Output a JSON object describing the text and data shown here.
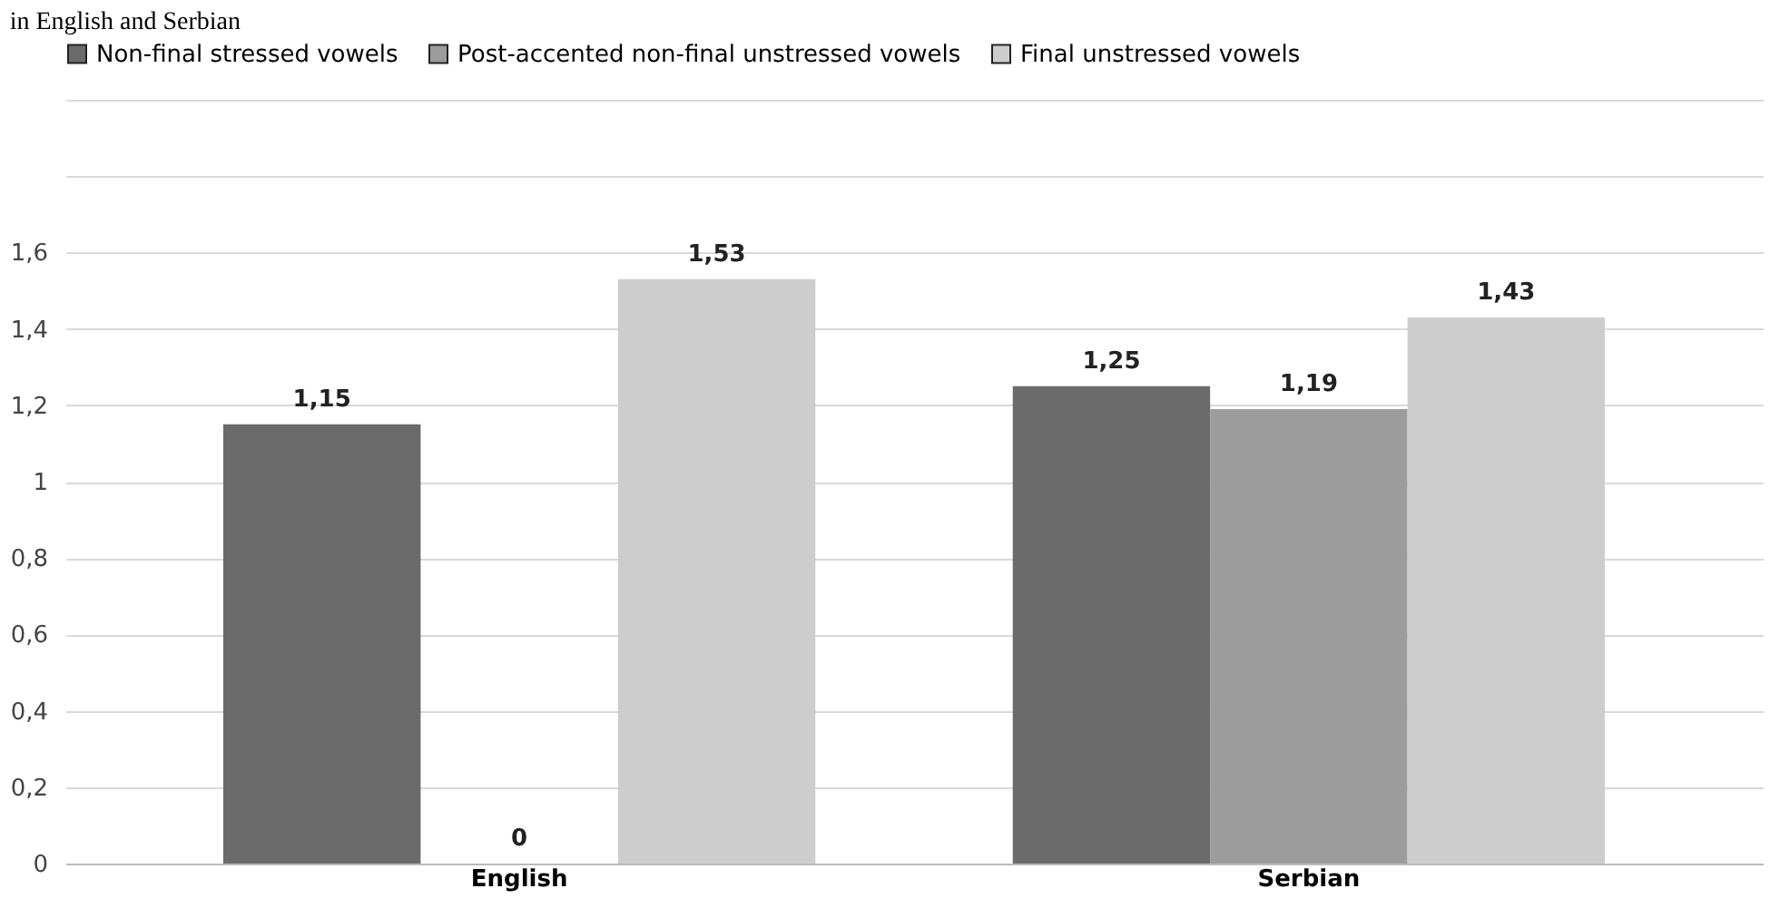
{
  "chart_data": {
    "type": "bar",
    "title": "in English and Serbian",
    "categories": [
      "English",
      "Serbian"
    ],
    "series": [
      {
        "name": "Non-final stressed vowels",
        "color": "#6b6b6b",
        "values": [
          1.15,
          1.25
        ],
        "value_labels": [
          "1,15",
          "1,25"
        ]
      },
      {
        "name": "Post-accented non-final unstressed vowels",
        "color": "#9c9c9c",
        "values": [
          0,
          1.19
        ],
        "value_labels": [
          "0",
          "1,19"
        ]
      },
      {
        "name": "Final unstressed vowels",
        "color": "#cdcdcd",
        "values": [
          1.53,
          1.43
        ],
        "value_labels": [
          "1,53",
          "1,43"
        ]
      }
    ],
    "ylim": [
      0,
      2
    ],
    "yticks": [
      "0",
      {
        "value": 0.2,
        "label": "0,2"
      },
      {
        "value": 0.4,
        "label": "0,4"
      },
      {
        "value": 0.6,
        "label": "0,6"
      },
      {
        "value": 0.8,
        "label": "0,8"
      },
      "1",
      {
        "value": 1.2,
        "label": "1,2"
      },
      {
        "value": 1.4,
        "label": "1,4"
      },
      {
        "value": 1.6,
        "label": "1,6"
      },
      {
        "value": 1.8,
        "label": null
      },
      {
        "value": 2,
        "label": null
      }
    ],
    "grid": "y",
    "legend": "top"
  }
}
